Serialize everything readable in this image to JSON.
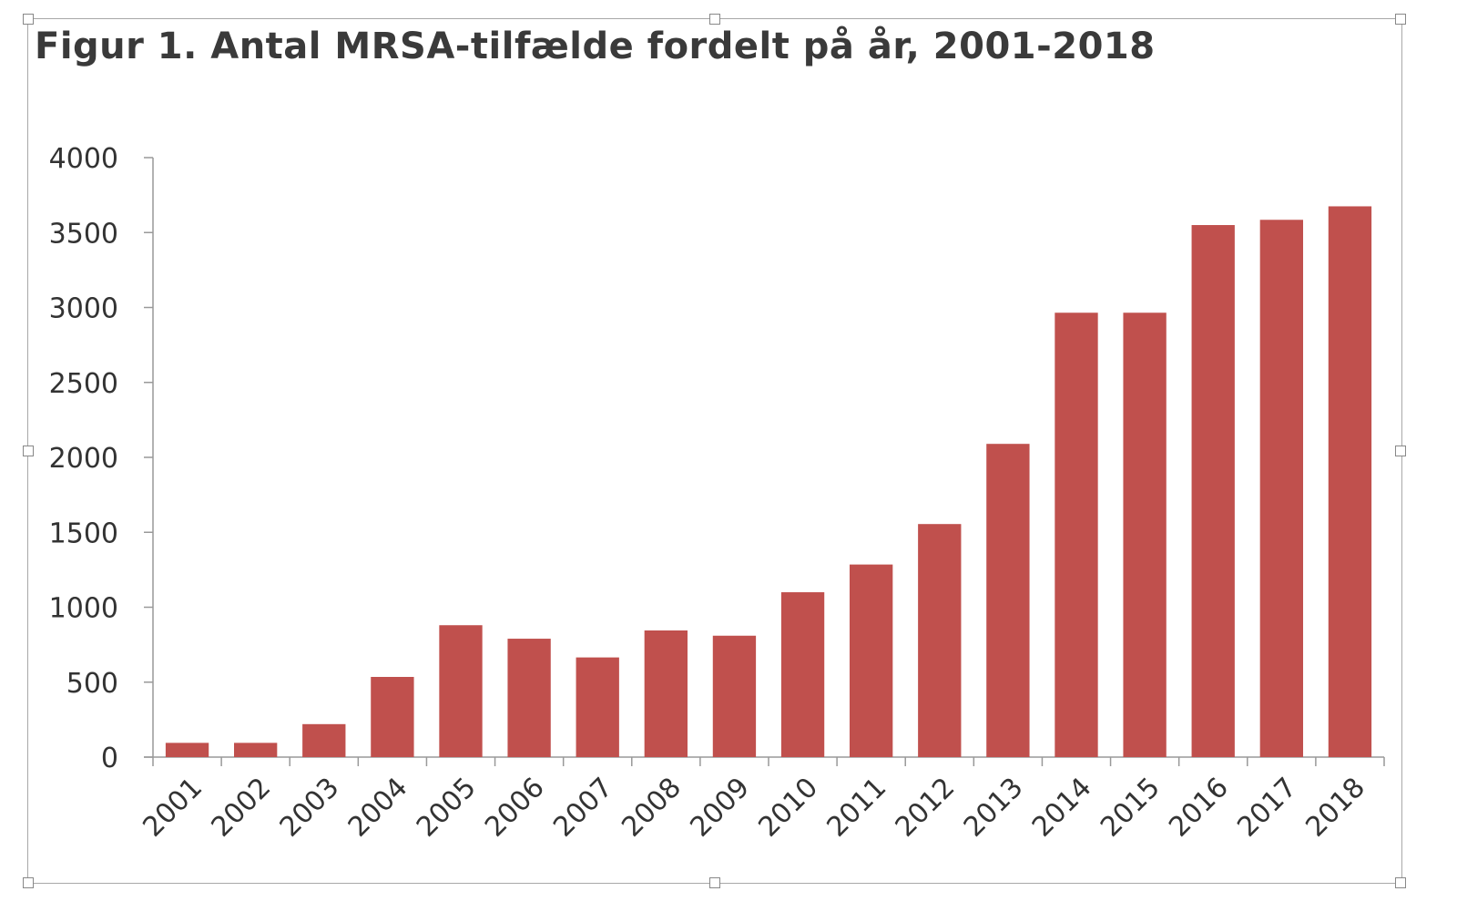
{
  "chart_data": {
    "type": "bar",
    "title": "Figur 1. Antal MRSA-tilfælde fordelt på år, 2001-2018",
    "categories": [
      "2001",
      "2002",
      "2003",
      "2004",
      "2005",
      "2006",
      "2007",
      "2008",
      "2009",
      "2010",
      "2011",
      "2012",
      "2013",
      "2014",
      "2015",
      "2016",
      "2017",
      "2018"
    ],
    "values": [
      95,
      95,
      220,
      535,
      880,
      790,
      665,
      845,
      810,
      1100,
      1285,
      1555,
      2090,
      2965,
      2965,
      3550,
      3585,
      3675
    ],
    "ylim": [
      0,
      4000
    ],
    "yticks": [
      0,
      500,
      1000,
      1500,
      2000,
      2500,
      3000,
      3500,
      4000
    ],
    "xlabel": "",
    "ylabel": "",
    "grid": false,
    "legend": "none",
    "bar_color": "#c0504d"
  }
}
